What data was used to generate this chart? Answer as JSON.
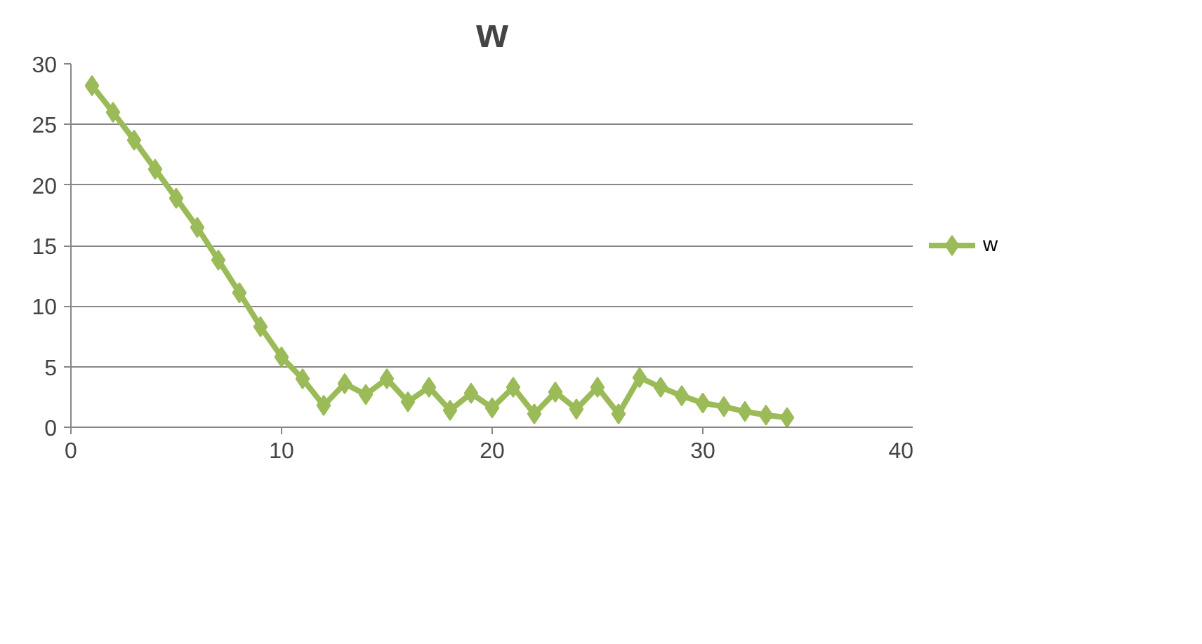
{
  "chart_data": {
    "type": "line",
    "title": "w",
    "x": [
      1,
      2,
      3,
      4,
      5,
      6,
      7,
      8,
      9,
      10,
      11,
      12,
      13,
      14,
      15,
      16,
      17,
      18,
      19,
      20,
      21,
      22,
      23,
      24,
      25,
      26,
      27,
      28,
      29,
      30,
      31,
      32,
      33,
      34
    ],
    "series": [
      {
        "name": "w",
        "color": "#9bbb59",
        "values": [
          28.2,
          26.0,
          23.7,
          21.3,
          18.9,
          16.5,
          13.8,
          11.1,
          8.3,
          5.8,
          4.0,
          1.8,
          3.6,
          2.7,
          4.0,
          2.1,
          3.3,
          1.4,
          2.8,
          1.6,
          3.3,
          1.1,
          2.9,
          1.5,
          3.3,
          1.1,
          4.1,
          3.3,
          2.6,
          2.0,
          1.7,
          1.3,
          1.0,
          0.8
        ]
      }
    ],
    "xlim": [
      0,
      40
    ],
    "xticks": [
      0,
      10,
      20,
      30,
      40
    ],
    "ylim": [
      0,
      30
    ],
    "yticks": [
      0,
      5,
      10,
      15,
      20,
      25,
      30
    ],
    "grid": "y",
    "legend": "right",
    "marker": "diamond",
    "line_style": "solid"
  }
}
